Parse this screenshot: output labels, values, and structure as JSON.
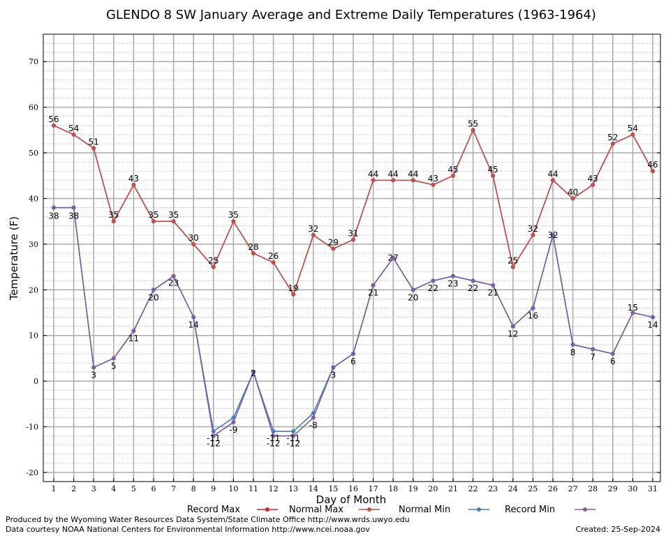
{
  "chart_data": {
    "type": "line",
    "title": "GLENDO 8 SW January Average and Extreme Daily Temperatures (1963-1964)",
    "xlabel": "Day of Month",
    "ylabel": "Temperature (F)",
    "ylim": [
      -22,
      76
    ],
    "yticks": [
      -20,
      -10,
      0,
      10,
      20,
      30,
      40,
      50,
      60,
      70
    ],
    "x": [
      1,
      2,
      3,
      4,
      5,
      6,
      7,
      8,
      9,
      10,
      11,
      12,
      13,
      14,
      15,
      16,
      17,
      18,
      19,
      20,
      21,
      22,
      23,
      24,
      25,
      26,
      27,
      28,
      29,
      30,
      31
    ],
    "grid": true,
    "legend_position": "bottom",
    "series": [
      {
        "name": "Record Max",
        "color": "#dd2222",
        "values": [
          56,
          54,
          51,
          35,
          43,
          35,
          35,
          30,
          25,
          35,
          28,
          26,
          19,
          32,
          29,
          31,
          44,
          44,
          44,
          43,
          45,
          55,
          45,
          25,
          32,
          44,
          40,
          43,
          52,
          54,
          46
        ]
      },
      {
        "name": "Normal Max",
        "color": "#c0504d",
        "values": [
          56,
          54,
          51,
          35,
          43,
          35,
          35,
          30,
          25,
          35,
          28,
          26,
          19,
          32,
          29,
          31,
          44,
          44,
          44,
          43,
          45,
          55,
          45,
          25,
          32,
          44,
          40,
          43,
          52,
          54,
          46
        ]
      },
      {
        "name": "Normal Min",
        "color": "#4682b4",
        "values": [
          38,
          38,
          3,
          5,
          11,
          20,
          23,
          14,
          -11,
          -8,
          2,
          -11,
          -11,
          -7,
          3,
          6,
          21,
          27,
          20,
          22,
          23,
          22,
          21,
          12,
          16,
          32,
          8,
          7,
          6,
          15,
          14
        ]
      },
      {
        "name": "Record Min",
        "color": "#7b5ea7",
        "values": [
          38,
          38,
          3,
          5,
          11,
          20,
          23,
          14,
          -12,
          -9,
          2,
          -12,
          -12,
          -8,
          3,
          6,
          21,
          27,
          20,
          22,
          23,
          22,
          21,
          12,
          16,
          32,
          8,
          7,
          6,
          15,
          14
        ]
      }
    ],
    "labels_max": [
      56,
      54,
      51,
      35,
      43,
      35,
      35,
      30,
      25,
      35,
      28,
      26,
      19,
      32,
      29,
      31,
      44,
      44,
      44,
      43,
      45,
      55,
      45,
      25,
      32,
      44,
      40,
      43,
      52,
      54,
      46
    ],
    "labels_min": [
      38,
      38,
      3,
      5,
      11,
      20,
      23,
      14,
      -12,
      -9,
      2,
      -12,
      -12,
      -8,
      3,
      6,
      21,
      27,
      20,
      22,
      23,
      22,
      21,
      12,
      16,
      32,
      8,
      7,
      6,
      15,
      14
    ],
    "labels_normal_min": {
      "9": -11,
      "12": -11,
      "13": -11
    }
  },
  "footer": {
    "line1": "Produced by the Wyoming Water Resources Data System/State Climate Office http://www.wrds.uwyo.edu",
    "line2": "Data courtesy NOAA National Centers for Environmental Information http://www.ncei.noaa.gov",
    "created": "Created:  25-Sep-2024"
  }
}
